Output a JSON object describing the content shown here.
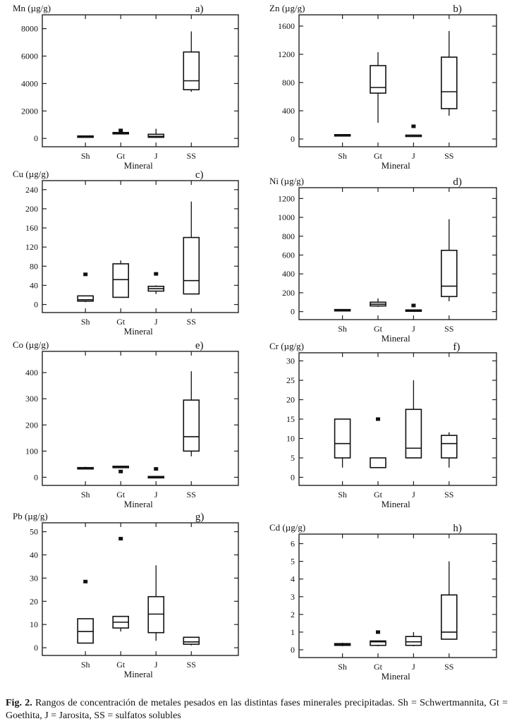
{
  "caption": {
    "label": "Fig. 2.",
    "text": "Rangos de concentración de metales pesados en las distintas fases minerales precipitadas. Sh = Schwertmannita, Gt = Goethita, J = Jarosita, SS = sulfatos solubles"
  },
  "chart_data": [
    {
      "type": "boxplot",
      "panel": "a)",
      "ylabel": "Mn (µg/g)",
      "xlabel": "Mineral",
      "categories": [
        "Sh",
        "Gt",
        "J",
        "SS"
      ],
      "ylim": [
        -300,
        8700
      ],
      "yticks": [
        0,
        2000,
        4000,
        6000,
        8000
      ],
      "boxes": [
        {
          "min": 100,
          "q1": 120,
          "median": 150,
          "q3": 180,
          "max": 200,
          "outliers": []
        },
        {
          "min": 340,
          "q1": 360,
          "median": 390,
          "q3": 430,
          "max": 470,
          "outliers": [
            580
          ]
        },
        {
          "min": 40,
          "q1": 80,
          "median": 150,
          "q3": 300,
          "max": 700,
          "outliers": []
        },
        {
          "min": 3400,
          "q1": 3550,
          "median": 4200,
          "q3": 6300,
          "max": 7800,
          "outliers": []
        }
      ]
    },
    {
      "type": "boxplot",
      "panel": "b)",
      "ylabel": "Zn (µg/g)",
      "xlabel": "Mineral",
      "categories": [
        "Sh",
        "Gt",
        "J",
        "SS"
      ],
      "ylim": [
        -50,
        1700
      ],
      "yticks": [
        0,
        400,
        800,
        1200,
        1600
      ],
      "boxes": [
        {
          "min": 40,
          "q1": 48,
          "median": 55,
          "q3": 62,
          "max": 70,
          "outliers": []
        },
        {
          "min": 230,
          "q1": 650,
          "median": 730,
          "q3": 1040,
          "max": 1230,
          "outliers": []
        },
        {
          "min": 35,
          "q1": 45,
          "median": 50,
          "q3": 55,
          "max": 60,
          "outliers": [
            180
          ]
        },
        {
          "min": 330,
          "q1": 430,
          "median": 670,
          "q3": 1160,
          "max": 1530,
          "outliers": []
        }
      ]
    },
    {
      "type": "boxplot",
      "panel": "c)",
      "ylabel": "Cu (µg/g)",
      "xlabel": "Mineral",
      "categories": [
        "Sh",
        "Gt",
        "J",
        "SS"
      ],
      "ylim": [
        -8,
        250
      ],
      "yticks": [
        0,
        40,
        80,
        120,
        160,
        200,
        240
      ],
      "boxes": [
        {
          "min": 5,
          "q1": 7,
          "median": 10,
          "q3": 18,
          "max": 18,
          "outliers": [
            63
          ]
        },
        {
          "min": 15,
          "q1": 15,
          "median": 52,
          "q3": 85,
          "max": 92,
          "outliers": []
        },
        {
          "min": 22,
          "q1": 28,
          "median": 33,
          "q3": 38,
          "max": 40,
          "outliers": [
            64
          ]
        },
        {
          "min": 22,
          "q1": 22,
          "median": 50,
          "q3": 140,
          "max": 215,
          "outliers": []
        }
      ]
    },
    {
      "type": "boxplot",
      "panel": "d)",
      "ylabel": "Ni (µg/g)",
      "xlabel": "Mineral",
      "categories": [
        "Sh",
        "Gt",
        "J",
        "SS"
      ],
      "ylim": [
        -40,
        1270
      ],
      "yticks": [
        0,
        200,
        400,
        600,
        800,
        1000,
        1200
      ],
      "boxes": [
        {
          "min": 10,
          "q1": 15,
          "median": 18,
          "q3": 22,
          "max": 28,
          "outliers": []
        },
        {
          "min": 50,
          "q1": 60,
          "median": 78,
          "q3": 100,
          "max": 140,
          "outliers": []
        },
        {
          "min": 8,
          "q1": 12,
          "median": 15,
          "q3": 18,
          "max": 22,
          "outliers": [
            65
          ]
        },
        {
          "min": 110,
          "q1": 160,
          "median": 270,
          "q3": 650,
          "max": 980,
          "outliers": []
        }
      ]
    },
    {
      "type": "boxplot",
      "panel": "e)",
      "ylabel": "Co (µg/g)",
      "xlabel": "Mineral",
      "categories": [
        "Sh",
        "Gt",
        "J",
        "SS"
      ],
      "ylim": [
        -15,
        465
      ],
      "yticks": [
        0,
        100,
        200,
        300,
        400
      ],
      "boxes": [
        {
          "min": 30,
          "q1": 32,
          "median": 35,
          "q3": 37,
          "max": 40,
          "outliers": []
        },
        {
          "min": 36,
          "q1": 37,
          "median": 40,
          "q3": 42,
          "max": 44,
          "outliers": [
            22
          ]
        },
        {
          "min": 0,
          "q1": 1,
          "median": 2,
          "q3": 3,
          "max": 4,
          "outliers": [
            32
          ]
        },
        {
          "min": 80,
          "q1": 100,
          "median": 155,
          "q3": 295,
          "max": 405,
          "outliers": []
        }
      ]
    },
    {
      "type": "boxplot",
      "panel": "f)",
      "ylabel": "Cr (µg/g)",
      "xlabel": "Mineral",
      "categories": [
        "Sh",
        "Gt",
        "J",
        "SS"
      ],
      "ylim": [
        -1,
        31
      ],
      "yticks": [
        0,
        5,
        10,
        15,
        20,
        25,
        30
      ],
      "boxes": [
        {
          "min": 2.5,
          "q1": 5,
          "median": 8.7,
          "q3": 15,
          "max": 15,
          "outliers": []
        },
        {
          "min": 2.5,
          "q1": 2.5,
          "median": 2.5,
          "q3": 5,
          "max": 5,
          "outliers": [
            15
          ]
        },
        {
          "min": 5,
          "q1": 5,
          "median": 7.5,
          "q3": 17.5,
          "max": 25,
          "outliers": []
        },
        {
          "min": 2.5,
          "q1": 5,
          "median": 8.7,
          "q3": 10.8,
          "max": 11.6,
          "outliers": []
        }
      ]
    },
    {
      "type": "boxplot",
      "panel": "g)",
      "ylabel": "Pb (µg/g)",
      "xlabel": "Mineral",
      "categories": [
        "Sh",
        "Gt",
        "J",
        "SS"
      ],
      "ylim": [
        -1.5,
        52
      ],
      "yticks": [
        0,
        10,
        20,
        30,
        40,
        50
      ],
      "boxes": [
        {
          "min": 2,
          "q1": 2,
          "median": 7,
          "q3": 12.5,
          "max": 12.5,
          "outliers": [
            28.5
          ]
        },
        {
          "min": 7,
          "q1": 8.5,
          "median": 11,
          "q3": 13.5,
          "max": 13.5,
          "outliers": [
            47
          ]
        },
        {
          "min": 3,
          "q1": 6.5,
          "median": 14.5,
          "q3": 22,
          "max": 35.5,
          "outliers": []
        },
        {
          "min": 1,
          "q1": 1.5,
          "median": 2.5,
          "q3": 4.5,
          "max": 4.5,
          "outliers": []
        }
      ]
    },
    {
      "type": "boxplot",
      "panel": "h)",
      "ylabel": "Cd (µg/g)",
      "xlabel": "Mineral",
      "categories": [
        "Sh",
        "Gt",
        "J",
        "SS"
      ],
      "ylim": [
        -0.2,
        6.3
      ],
      "yticks": [
        0,
        1,
        2,
        3,
        4,
        5,
        6
      ],
      "boxes": [
        {
          "min": 0.2,
          "q1": 0.25,
          "median": 0.3,
          "q3": 0.35,
          "max": 0.4,
          "outliers": []
        },
        {
          "min": 0.2,
          "q1": 0.25,
          "median": 0.45,
          "q3": 0.5,
          "max": 0.5,
          "outliers": [
            1
          ]
        },
        {
          "min": 0.2,
          "q1": 0.25,
          "median": 0.45,
          "q3": 0.75,
          "max": 1,
          "outliers": []
        },
        {
          "min": 0.6,
          "q1": 0.6,
          "median": 1,
          "q3": 3.1,
          "max": 5,
          "outliers": []
        }
      ]
    }
  ]
}
